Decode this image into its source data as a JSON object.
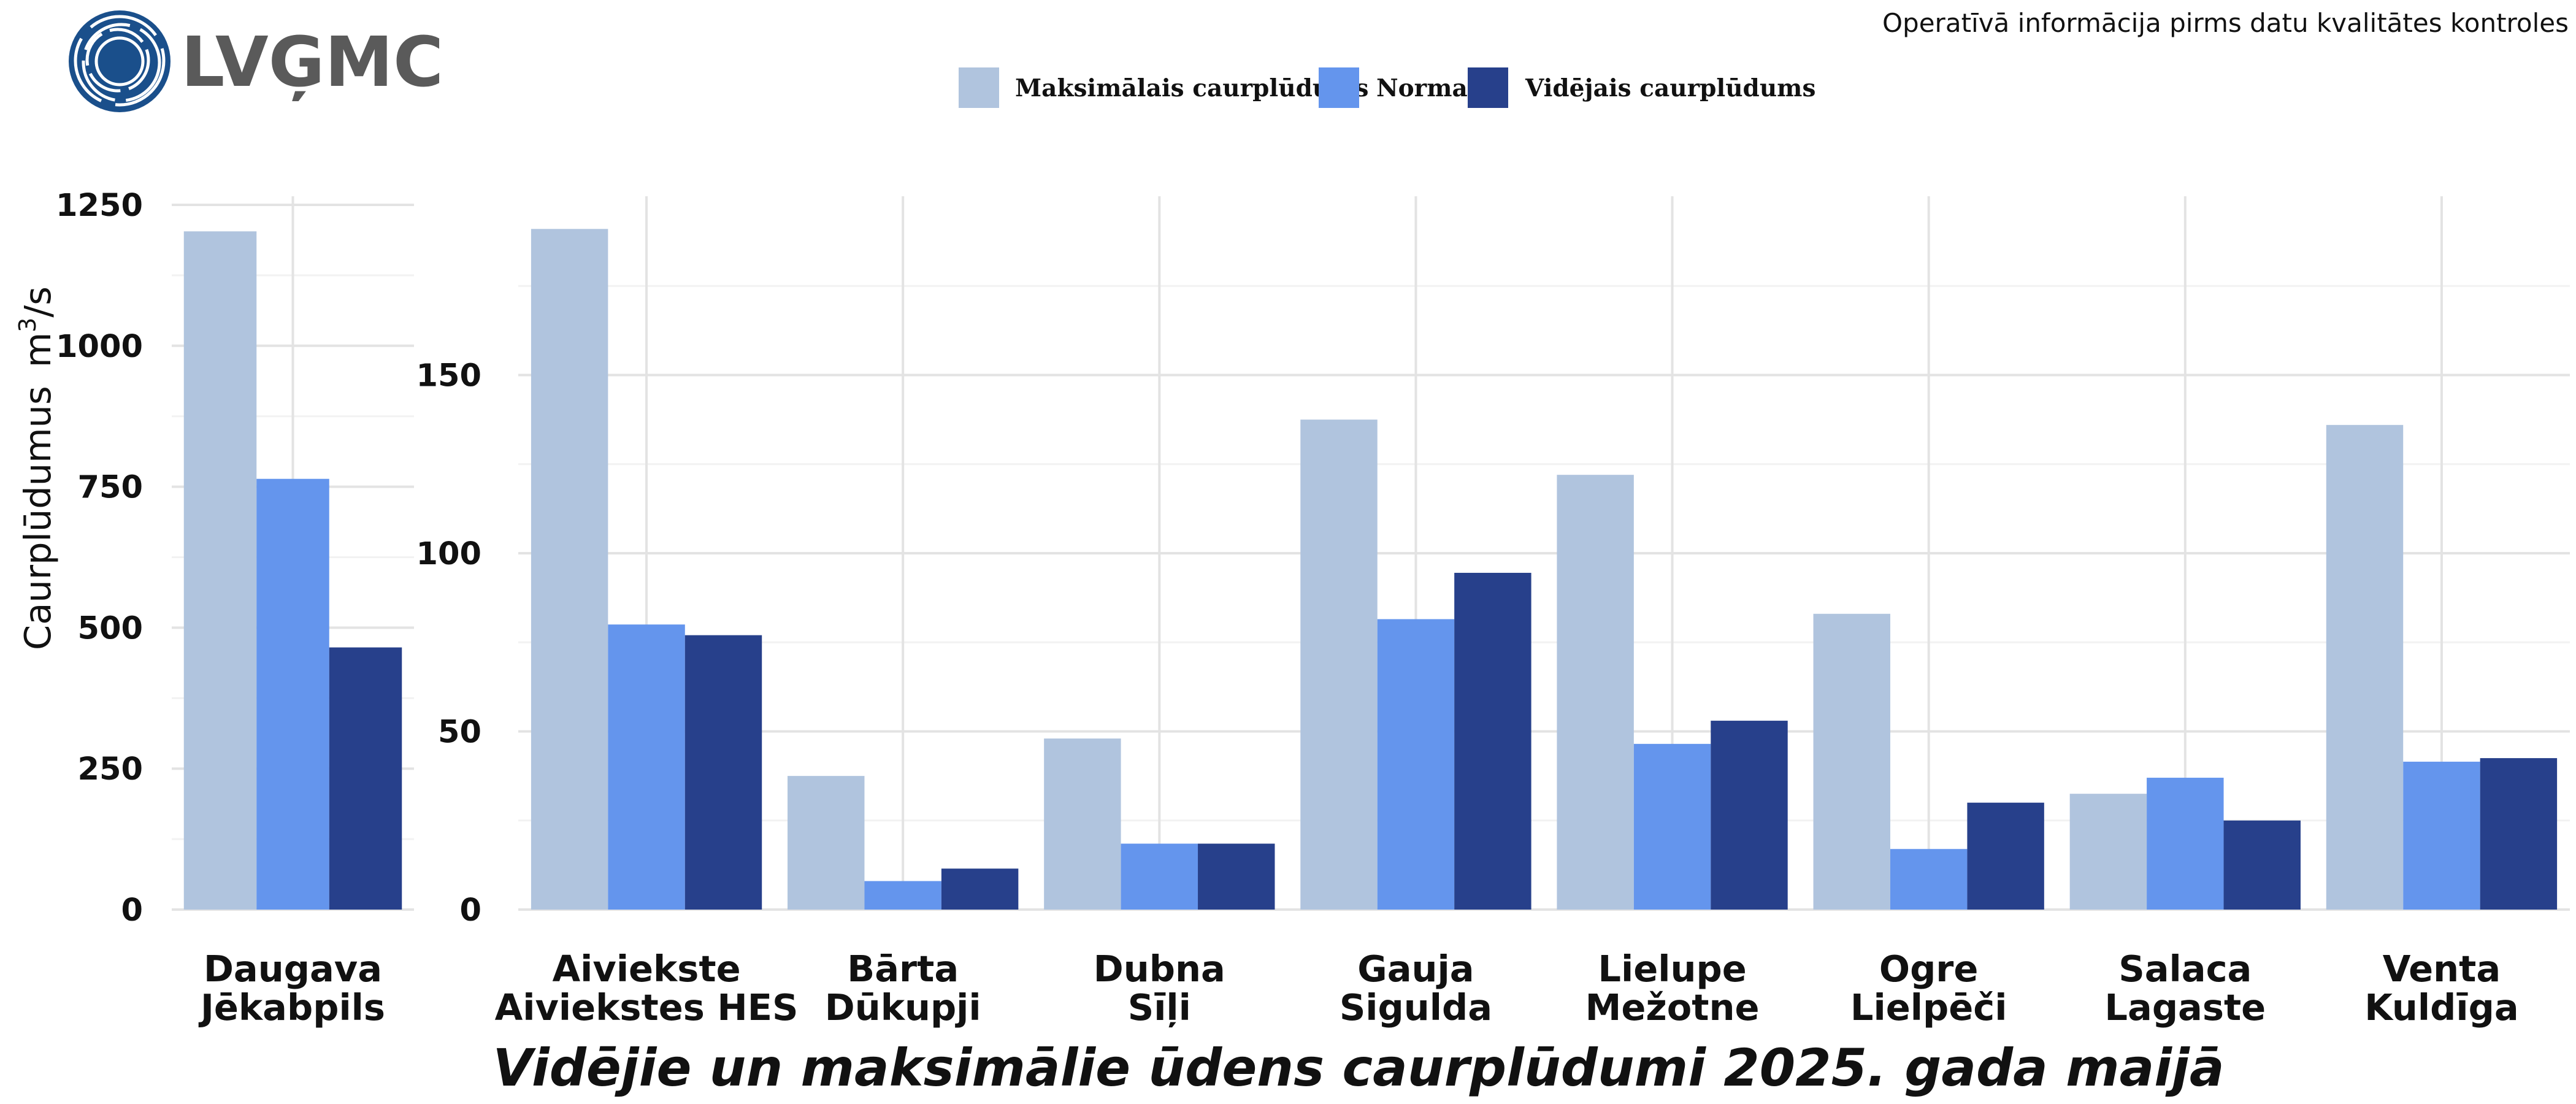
{
  "logo": {
    "text": "LVĢMC"
  },
  "note": "Operatīvā informācija pirms datu kvalitātes kontroles",
  "title": "Vidējie un maksimālie ūdens caurplūdumi 2025. gada maijā",
  "y_axis": {
    "label": "Caurplūdumus",
    "unit_base": "m",
    "unit_sup": "3",
    "unit_rest": "/s"
  },
  "chart_data": [
    {
      "type": "bar",
      "title": "Vidējie un maksimālie ūdens caurplūdumi 2025. gada maijā",
      "ylabel": "Caurplūdumus m³/s",
      "categories": [
        [
          "Daugava",
          "Jēkabpils"
        ]
      ],
      "ylim": [
        0,
        1250
      ],
      "yticks": [
        0,
        250,
        500,
        750,
        1000,
        1250
      ],
      "grid": true,
      "legend_position": "top",
      "series": [
        {
          "name": "Maksimālais caurplūdums",
          "color": "#b0c4de",
          "values": [
            1203
          ]
        },
        {
          "name": "Norma",
          "color": "#6495ed",
          "values": [
            764
          ]
        },
        {
          "name": "Vidējais caurplūdums",
          "color": "#27408b",
          "values": [
            465
          ]
        }
      ]
    },
    {
      "type": "bar",
      "categories": [
        [
          "Aiviekste",
          "Aiviekstes HES"
        ],
        [
          "Bārta",
          "Dūkupji"
        ],
        [
          "Dubna",
          "Sīļi"
        ],
        [
          "Gauja",
          "Sigulda"
        ],
        [
          "Lielupe",
          "Mežotne"
        ],
        [
          "Ogre",
          "Lielpēči"
        ],
        [
          "Salaca",
          "Lagaste"
        ],
        [
          "Venta",
          "Kuldīga"
        ]
      ],
      "ylim": [
        0,
        200
      ],
      "yticks": [
        0,
        50,
        100,
        150
      ],
      "grid": true,
      "legend_position": "top",
      "series": [
        {
          "name": "Maksimālais caurplūdums",
          "color": "#b0c4de",
          "values": [
            191,
            37.5,
            48,
            137.5,
            122,
            83,
            32.5,
            136
          ]
        },
        {
          "name": "Norma",
          "color": "#6495ed",
          "values": [
            80,
            8,
            18.5,
            81.5,
            46.5,
            17,
            37,
            41.5
          ]
        },
        {
          "name": "Vidējais caurplūdums",
          "color": "#27408b",
          "values": [
            77,
            11.5,
            18.5,
            94.5,
            53,
            30,
            25,
            42.5
          ]
        }
      ]
    }
  ]
}
